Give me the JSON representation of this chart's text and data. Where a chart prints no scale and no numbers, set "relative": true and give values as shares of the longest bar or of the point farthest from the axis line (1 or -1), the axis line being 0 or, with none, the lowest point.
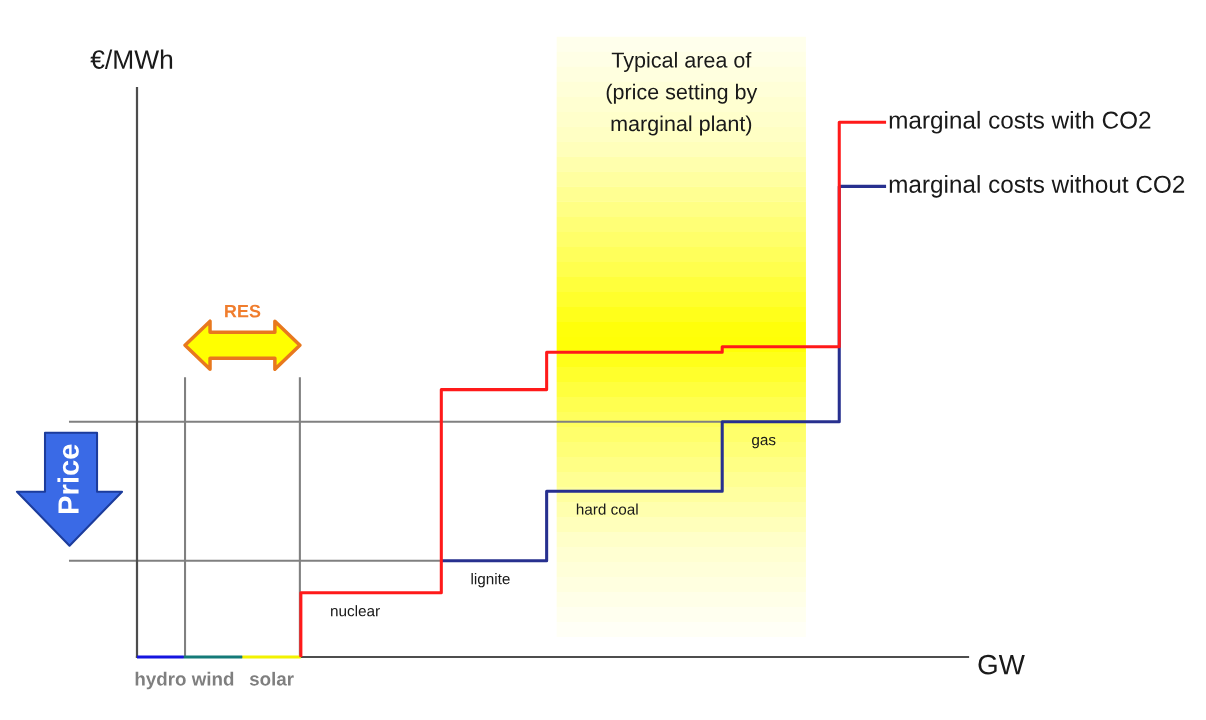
{
  "chart_data": {
    "type": "step",
    "relative": true,
    "xlabel": "GW",
    "ylabel": "€/MWh",
    "categories": [
      null,
      null,
      null,
      null,
      null,
      null,
      null,
      null,
      null,
      null,
      null,
      null,
      null,
      null,
      null,
      null,
      null,
      null,
      null,
      null,
      null,
      null,
      null,
      null,
      null,
      null,
      null,
      null,
      null,
      null,
      null,
      null,
      null,
      null,
      null,
      null,
      null,
      null,
      null,
      null,
      null,
      null,
      null,
      null,
      null,
      null,
      null,
      null,
      null,
      null,
      null,
      null,
      null,
      null,
      null,
      null,
      null,
      null,
      null,
      null,
      null,
      null,
      null,
      null,
      null,
      null,
      null,
      null,
      null,
      null,
      null
    ],
    "series": [
      {
        "name": "hydro",
        "color": "#1515e0",
        "values": [
          0,
          0,
          0,
          0,
          0,
          null,
          null,
          null,
          null,
          null,
          null,
          null,
          null,
          null,
          null,
          null,
          null,
          null,
          null,
          null,
          null,
          null,
          null,
          null,
          null,
          null,
          null,
          null,
          null,
          null,
          null,
          null,
          null,
          null,
          null,
          null,
          null,
          null,
          null,
          null,
          null,
          null,
          null,
          null,
          null,
          null,
          null,
          null,
          null,
          null,
          null,
          null,
          null,
          null,
          null,
          null,
          null,
          null,
          null,
          null,
          null,
          null,
          null,
          null,
          null,
          null,
          null,
          null,
          null,
          null,
          null
        ]
      },
      {
        "name": "wind",
        "color": "#147a78",
        "values": [
          null,
          null,
          null,
          null,
          0,
          0,
          0,
          0,
          0,
          0,
          null,
          null,
          null,
          null,
          null,
          null,
          null,
          null,
          null,
          null,
          null,
          null,
          null,
          null,
          null,
          null,
          null,
          null,
          null,
          null,
          null,
          null,
          null,
          null,
          null,
          null,
          null,
          null,
          null,
          null,
          null,
          null,
          null,
          null,
          null,
          null,
          null,
          null,
          null,
          null,
          null,
          null,
          null,
          null,
          null,
          null,
          null,
          null,
          null,
          null,
          null,
          null,
          null,
          null,
          null,
          null,
          null,
          null,
          null,
          null,
          null
        ]
      },
      {
        "name": "solar",
        "color": "#f2f200",
        "values": [
          null,
          null,
          null,
          null,
          null,
          null,
          null,
          null,
          null,
          0,
          0,
          0,
          0,
          0,
          0,
          null,
          null,
          null,
          null,
          null,
          null,
          null,
          null,
          null,
          null,
          null,
          null,
          null,
          null,
          null,
          null,
          null,
          null,
          null,
          null,
          null,
          null,
          null,
          null,
          null,
          null,
          null,
          null,
          null,
          null,
          null,
          null,
          null,
          null,
          null,
          null,
          null,
          null,
          null,
          null,
          null,
          null,
          null,
          null,
          null,
          null,
          null,
          null,
          null,
          null,
          null,
          null,
          null,
          null,
          null,
          null
        ]
      },
      {
        "name": "marginal costs without CO2",
        "color": "#27308f",
        "values": [
          null,
          null,
          null,
          null,
          null,
          null,
          null,
          null,
          null,
          null,
          null,
          null,
          null,
          null,
          null,
          null,
          null,
          null,
          null,
          null,
          null,
          null,
          null,
          null,
          null,
          null,
          0.18,
          0.18,
          0.18,
          0.18,
          0.18,
          0.18,
          0.18,
          0.18,
          0.18,
          0.18,
          0.31,
          0.31,
          0.31,
          0.31,
          0.31,
          0.31,
          0.31,
          0.31,
          0.31,
          0.31,
          0.31,
          0.31,
          0.31,
          0.31,
          0.31,
          0.44,
          0.44,
          0.44,
          0.44,
          0.44,
          0.44,
          0.44,
          0.44,
          0.44,
          0.44,
          0.88,
          0.88,
          0.88,
          0.88,
          null,
          null,
          null,
          null,
          null,
          null
        ]
      },
      {
        "name": "marginal costs with CO2",
        "color": "#ff1a1a",
        "values": [
          null,
          null,
          null,
          null,
          null,
          null,
          null,
          null,
          null,
          null,
          null,
          null,
          null,
          null,
          0,
          0.12,
          0.12,
          0.12,
          0.12,
          0.12,
          0.12,
          0.12,
          0.12,
          0.12,
          0.12,
          0.12,
          0.12,
          0.5,
          0.5,
          0.5,
          0.5,
          0.5,
          0.5,
          0.5,
          0.5,
          0.5,
          0.57,
          0.57,
          0.57,
          0.57,
          0.57,
          0.57,
          0.57,
          0.57,
          0.57,
          0.57,
          0.57,
          0.57,
          0.57,
          0.57,
          0.57,
          0.58,
          0.58,
          0.58,
          0.58,
          0.58,
          0.58,
          0.58,
          0.58,
          0.58,
          0.58,
          1,
          1,
          1,
          1,
          null,
          null,
          null,
          null,
          null,
          null
        ]
      }
    ],
    "ref_lines": [
      {
        "axis": "y",
        "value": 0.44,
        "color": "#808080"
      },
      {
        "axis": "y",
        "value": 0.18,
        "color": "#808080"
      }
    ],
    "annotations": [
      "RES",
      "Price",
      "Typical area of\n(price setting by\nmarginal plant)",
      {
        "text": "nuclear",
        "y": 0.12
      },
      {
        "text": "lignite",
        "y": 0.18
      },
      {
        "text": "hard coal",
        "y": 0.31
      },
      {
        "text": "gas",
        "y": 0.44
      }
    ]
  }
}
